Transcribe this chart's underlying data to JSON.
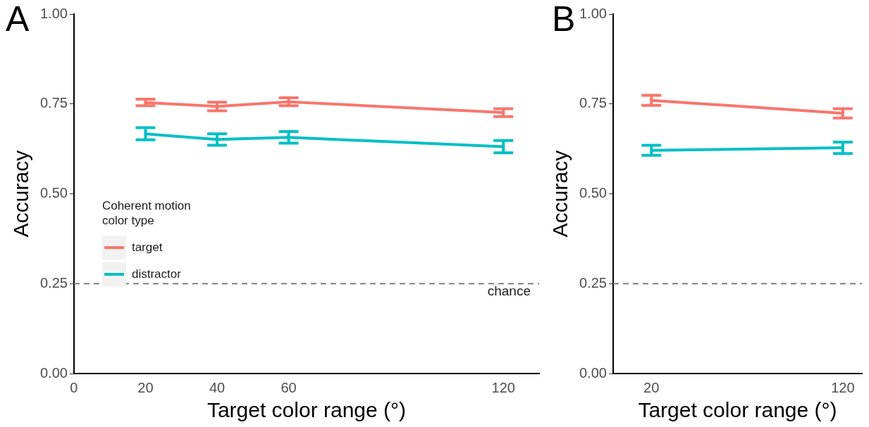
{
  "chart_data": [
    {
      "type": "line",
      "annotations": [
        "A"
      ],
      "xlabel": "Target color range (°)",
      "ylabel": "Accuracy",
      "legend_title": "Coherent motion\ncolor type",
      "x": [
        20,
        40,
        60,
        120
      ],
      "series": [
        {
          "name": "target",
          "color": "#f8766d",
          "values": [
            0.754,
            0.743,
            0.756,
            0.726
          ],
          "errors": [
            0.009,
            0.012,
            0.011,
            0.011
          ]
        },
        {
          "name": "distractor",
          "color": "#00bfc4",
          "values": [
            0.667,
            0.651,
            0.657,
            0.631
          ],
          "errors": [
            0.017,
            0.016,
            0.016,
            0.017
          ]
        }
      ],
      "xlim": [
        0,
        130
      ],
      "xticks": [
        0,
        20,
        40,
        60,
        120
      ],
      "ylim": [
        0,
        1
      ],
      "yticks": [
        {
          "value": 0,
          "label": "0.00"
        },
        {
          "value": 0.25,
          "label": "0.25"
        },
        {
          "value": 0.5,
          "label": "0.50"
        },
        {
          "value": 0.75,
          "label": "0.75"
        },
        {
          "value": 1,
          "label": "1.00"
        }
      ],
      "ref_lines": [
        {
          "axis": "y",
          "value": 0.25,
          "label": "chance",
          "color": "#7f7f7f",
          "line_style": "dashed"
        }
      ],
      "grid": false,
      "legend": "center left",
      "marker": "none",
      "line_style": "solid"
    },
    {
      "type": "line",
      "annotations": [
        "B"
      ],
      "xlabel": "Target color range (°)",
      "ylabel": "Accuracy",
      "x": [
        20,
        120
      ],
      "series": [
        {
          "color": "#f8766d",
          "values": [
            0.76,
            0.724
          ],
          "errors": [
            0.014,
            0.013
          ]
        },
        {
          "color": "#00bfc4",
          "values": [
            0.621,
            0.628
          ],
          "errors": [
            0.014,
            0.016
          ]
        }
      ],
      "xlim": [
        0,
        130
      ],
      "xticks": [
        20,
        120
      ],
      "ylim": [
        0,
        1
      ],
      "yticks": [
        {
          "value": 0,
          "label": "0.00"
        },
        {
          "value": 0.25,
          "label": "0.25"
        },
        {
          "value": 0.5,
          "label": "0.50"
        },
        {
          "value": 0.75,
          "label": "0.75"
        },
        {
          "value": 1,
          "label": "1.00"
        }
      ],
      "ref_lines": [
        {
          "axis": "y",
          "value": 0.25,
          "color": "#7f7f7f",
          "line_style": "dashed"
        }
      ],
      "grid": false,
      "marker": "none",
      "line_style": "solid"
    }
  ]
}
